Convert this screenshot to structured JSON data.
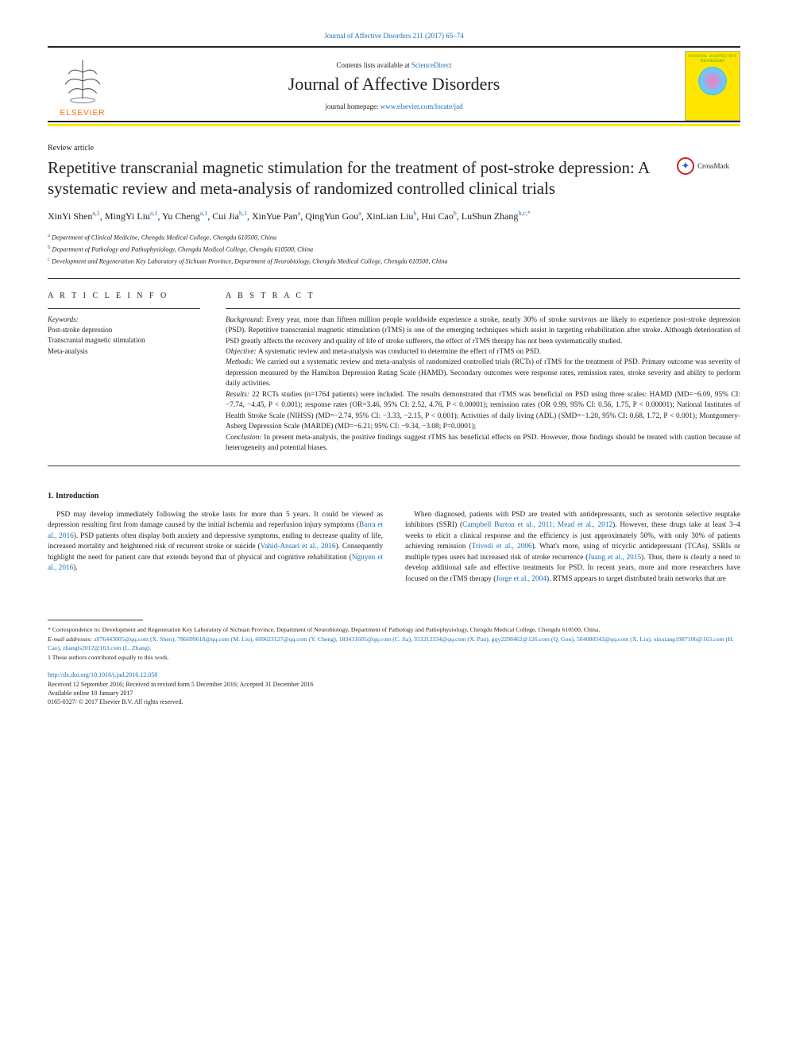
{
  "top_link": "Journal of Affective Disorders 211 (2017) 65–74",
  "header": {
    "contents_prefix": "Contents lists available at ",
    "contents_link": "ScienceDirect",
    "journal_name": "Journal of Affective Disorders",
    "homepage_prefix": "journal homepage: ",
    "homepage_url": "www.elsevier.com/locate/jad",
    "elsevier": "ELSEVIER",
    "cover_text": "JOURNAL of AFFECTIVE DISORDERS"
  },
  "article_type": "Review article",
  "title": "Repetitive transcranial magnetic stimulation for the treatment of post-stroke depression: A systematic review and meta-analysis of randomized controlled clinical trials",
  "crossmark": "CrossMark",
  "authors_html": "XinYi Shen<sup>a,1</sup>, MingYi Liu<sup>a,1</sup>, Yu Cheng<sup>a,1</sup>, Cui Jia<sup>b,1</sup>, XinYue Pan<sup>a</sup>, QingYun Gou<sup>a</sup>, XinLian Liu<sup>b</sup>, Hui Cao<sup>b</sup>, LuShun Zhang<sup>b,c,*</sup>",
  "affiliations": {
    "a": "Department of Clinical Medicine, Chengdu Medical College, Chengdu 610500, China",
    "b": "Department of Pathology and Pathophysiology, Chengdu Medical College, Chengdu 610500, China",
    "c": "Development and Regeneration Key Laboratory of Sichuan Province, Department of Neurobiology, Chengdu Medical College, Chengdu 610500, China"
  },
  "article_info": {
    "heading": "A R T I C L E  I N F O",
    "kw_label": "Keywords:",
    "keywords": [
      "Post-stroke depression",
      "Transcranial magnetic stimulation",
      "Meta-analysis"
    ]
  },
  "abstract": {
    "heading": "A B S T R A C T",
    "background": "Every year, more than fifteen million people worldwide experience a stroke, nearly 30% of stroke survivors are likely to experience post-stroke depression (PSD). Repetitive transcranial magnetic stimulation (rTMS) is one of the emerging techniques which assist in targeting rehabilitation after stroke. Although deterioration of PSD greatly affects the recovery and quality of life of stroke sufferers, the effect of rTMS therapy has not been systematically studied.",
    "objective": "A systematic review and meta-analysis was conducted to determine the effect of rTMS on PSD.",
    "methods": "We carried out a systematic review and meta-analysis of randomized controlled trials (RCTs) of rTMS for the treatment of PSD. Primary outcome was severity of depression measured by the Hamilton Depression Rating Scale (HAMD). Secondary outcomes were response rates, remission rates, stroke severity and ability to perform daily activities.",
    "results": "22 RCTs studies (n=1764 patients) were included. The results demonstrated that rTMS was beneficial on PSD using three scales: HAMD (MD=−6.09, 95% CI: −7.74, −4.45, P < 0.001); response rates (OR=3.46, 95% CI: 2.52, 4.76, P < 0.00001); remission rates (OR 0.99, 95% CI: 0.56, 1.75, P < 0.00001); National Institutes of Health Stroke Scale (NIHSS) (MD=−2.74, 95% CI: −3.33, −2.15, P < 0.001); Activities of daily living (ADL) (SMD=−1.20, 95% CI: 0.68, 1.72, P < 0.001); Montgomery-Asberg Depression Scale (MARDE) (MD=−6.21; 95% CI: −9.34, −3.08; P=0.0001);",
    "conclusion": "In present meta-analysis, the positive findings suggest rTMS has beneficial effects on PSD. However, those findings should be treated with caution because of heterogeneity and potential biases."
  },
  "introduction": {
    "heading": "1. Introduction",
    "p1": "PSD may develop immediately following the stroke lasts for more than 5 years. It could be viewed as depression resulting first from damage caused by the initial ischemia and reperfusion injury symptoms (",
    "c1": "Barra et al., 2016",
    "p1b": "). PSD patients often display both anxiety and depressive symptoms, ending to decrease quality of life, increased mortality and heightened risk of recurrent stroke or suicide (",
    "c2": "Vahid-Ansari et al., 2016",
    "p1c": "). Consequently highlight the need for patient care that extends beyond that of physical and cognitive rehabilitation (",
    "c3": "Nguyen et al., 2016",
    "p1d": ").",
    "p2": "When diagnosed, patients with PSD are treated with antidepressants, such as serotonin selective reuptake inhibitors (SSRI) (",
    "c4": "Campbell Burton et al., 2011; Mead et al., 2012",
    "p2b": "). However, these drugs take at least 3–4 weeks to elicit a clinical response and the efficiency is just approximately 50%, with only 30% of patients achieving remission (",
    "c5": "Trivedi et al., 2006",
    "p2c": "). What's more, using of tricyclic antidepressant (TCAs), SSRIs or multiple types users had increased risk of stroke recurrence (",
    "c6": "Juang et al., 2015",
    "p2d": "). Thus, there is clearly a need to develop additional safe and effective treatments for PSD. In recent years, more and more researchers have focused on the rTMS therapy (",
    "c7": "Jorge et al., 2004",
    "p2e": "). RTMS appears to target distributed brain networks that are"
  },
  "footer": {
    "corr": "* Correspondence to: Development and Regeneration Key Laboratory of Sichuan Province, Department of Neurobiology, Department of Pathology and Pathophysiology, Chengdu Medical College, Chengdu 610500, China.",
    "email_label": "E-mail addresses: ",
    "emails": "a976443005@qq.com (X. Shen), 786699618@qq.com (M. Liu), 609623127@qq.com (Y. Cheng), 183431605@qq.com (C. Jia), 353212334@qq.com (X. Pan), gqy2298462@126.com (Q. Gou), 504080342@qq.com (X. Liu), xinxiang1987106@163.com (H. Cao), zhangls2012@163.com (L. Zhang).",
    "shared": "1 These authors contributed equally to this work.",
    "doi": "http://dx.doi.org/10.1016/j.jad.2016.12.058",
    "received": "Received 12 September 2016; Received in revised form 5 December 2016; Accepted 31 December 2016",
    "online": "Available online 10 January 2017",
    "issn": "0165-0327/ © 2017 Elsevier B.V. All rights reserved."
  },
  "colors": {
    "link": "#1a6fb5",
    "elsevier_orange": "#ff6a00",
    "accent_yellow": "#ffe600",
    "text": "#222222"
  }
}
